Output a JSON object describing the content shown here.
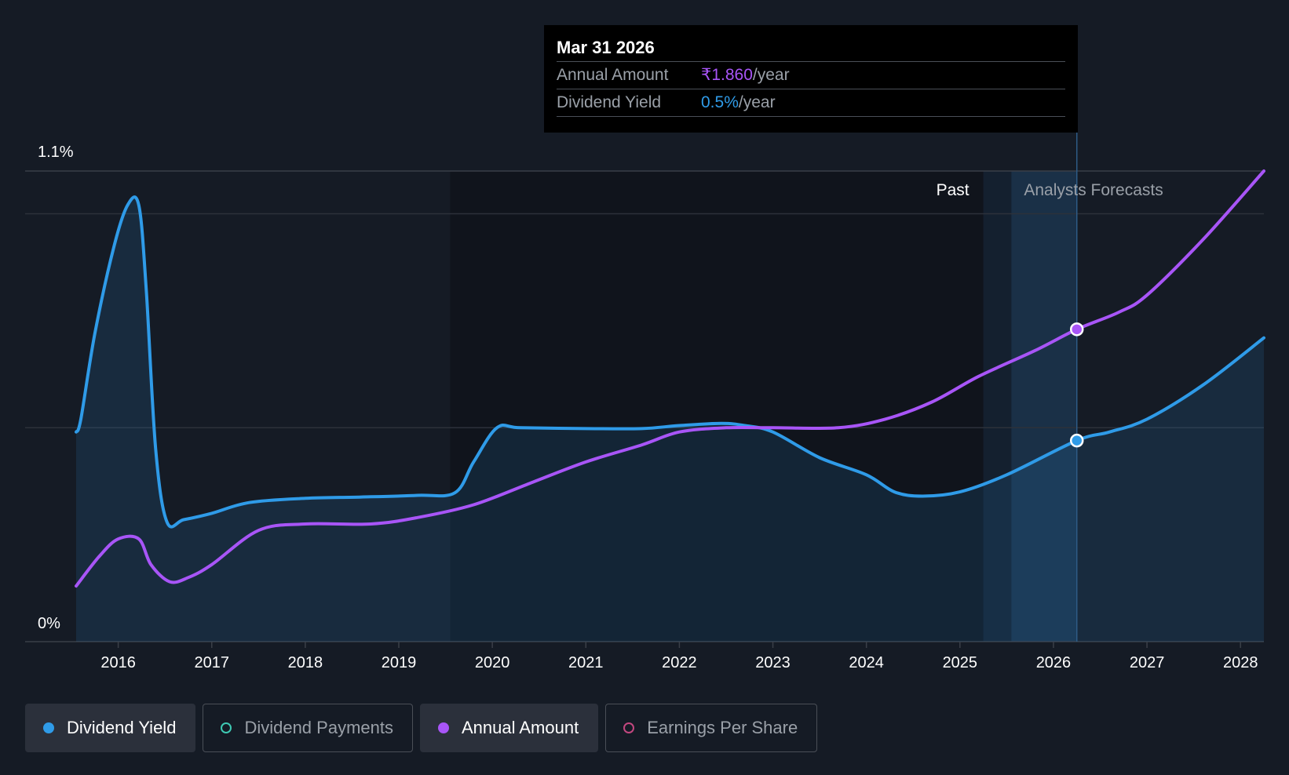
{
  "colors": {
    "background": "#151b25",
    "yield": "#2f9be8",
    "amount": "#a855f7",
    "payments": "#3ec9b3",
    "eps": "#c2477f",
    "grid": "#3a3f48",
    "text": "#ffffff",
    "muted": "#9aa0a8"
  },
  "tooltip": {
    "date": "Mar 31 2026",
    "rows": [
      {
        "label": "Annual Amount",
        "value": "₹1.860",
        "unit": "/year"
      },
      {
        "label": "Dividend Yield",
        "value": "0.5%",
        "unit": "/year"
      }
    ]
  },
  "legend": [
    {
      "label": "Dividend Yield",
      "active": true,
      "icon": "filled-dot-icon"
    },
    {
      "label": "Dividend Payments",
      "active": false,
      "icon": "hollow-dot-icon"
    },
    {
      "label": "Annual Amount",
      "active": true,
      "icon": "filled-dot-icon"
    },
    {
      "label": "Earnings Per Share",
      "active": false,
      "icon": "hollow-dot-icon"
    }
  ],
  "chart_data": {
    "type": "line",
    "y_axis_labels": [
      "1.1%",
      "0%"
    ],
    "ylim": [
      0,
      1.1
    ],
    "xlim": [
      2015.55,
      2028.25
    ],
    "x_ticks": [
      "2016",
      "2017",
      "2018",
      "2019",
      "2020",
      "2021",
      "2022",
      "2023",
      "2024",
      "2025",
      "2026",
      "2027",
      "2028"
    ],
    "region_labels": {
      "past": "Past",
      "forecast": "Analysts Forecasts"
    },
    "forecast_start": 2025.25,
    "highlight_start": 2025.55,
    "cursor_x": 2026.25,
    "series": [
      {
        "name": "Dividend Yield",
        "axis": "percent",
        "points": [
          [
            2015.55,
            0.49
          ],
          [
            2015.6,
            0.52
          ],
          [
            2015.75,
            0.72
          ],
          [
            2015.95,
            0.92
          ],
          [
            2016.1,
            1.02
          ],
          [
            2016.22,
            1.02
          ],
          [
            2016.3,
            0.82
          ],
          [
            2016.4,
            0.45
          ],
          [
            2016.52,
            0.28
          ],
          [
            2016.7,
            0.285
          ],
          [
            2017.0,
            0.3
          ],
          [
            2017.4,
            0.325
          ],
          [
            2018.0,
            0.335
          ],
          [
            2018.6,
            0.338
          ],
          [
            2019.2,
            0.342
          ],
          [
            2019.6,
            0.348
          ],
          [
            2019.8,
            0.42
          ],
          [
            2020.05,
            0.5
          ],
          [
            2020.3,
            0.5
          ],
          [
            2021.0,
            0.498
          ],
          [
            2021.6,
            0.498
          ],
          [
            2022.0,
            0.505
          ],
          [
            2022.45,
            0.51
          ],
          [
            2022.7,
            0.505
          ],
          [
            2023.0,
            0.49
          ],
          [
            2023.5,
            0.43
          ],
          [
            2024.0,
            0.39
          ],
          [
            2024.3,
            0.35
          ],
          [
            2024.6,
            0.34
          ],
          [
            2025.0,
            0.35
          ],
          [
            2025.5,
            0.39
          ],
          [
            2026.25,
            0.47
          ],
          [
            2026.6,
            0.49
          ],
          [
            2027.0,
            0.52
          ],
          [
            2027.6,
            0.6
          ],
          [
            2028.25,
            0.71
          ]
        ]
      },
      {
        "name": "Annual Amount",
        "axis": "amount",
        "points": [
          [
            2015.55,
            0.13
          ],
          [
            2015.8,
            0.2
          ],
          [
            2016.0,
            0.24
          ],
          [
            2016.22,
            0.24
          ],
          [
            2016.35,
            0.18
          ],
          [
            2016.55,
            0.14
          ],
          [
            2016.75,
            0.15
          ],
          [
            2017.0,
            0.18
          ],
          [
            2017.5,
            0.26
          ],
          [
            2018.0,
            0.275
          ],
          [
            2018.7,
            0.275
          ],
          [
            2019.2,
            0.29
          ],
          [
            2019.8,
            0.32
          ],
          [
            2020.4,
            0.37
          ],
          [
            2021.0,
            0.42
          ],
          [
            2021.6,
            0.46
          ],
          [
            2022.0,
            0.49
          ],
          [
            2022.5,
            0.5
          ],
          [
            2023.0,
            0.5
          ],
          [
            2023.7,
            0.5
          ],
          [
            2024.2,
            0.52
          ],
          [
            2024.7,
            0.56
          ],
          [
            2025.2,
            0.62
          ],
          [
            2025.8,
            0.68
          ],
          [
            2026.25,
            0.73
          ],
          [
            2026.7,
            0.77
          ],
          [
            2027.0,
            0.81
          ],
          [
            2027.6,
            0.94
          ],
          [
            2028.25,
            1.1
          ]
        ]
      }
    ],
    "markers": [
      {
        "series": "Annual Amount",
        "x": 2026.25,
        "y": 0.73
      },
      {
        "series": "Dividend Yield",
        "x": 2026.25,
        "y": 0.47
      }
    ]
  }
}
